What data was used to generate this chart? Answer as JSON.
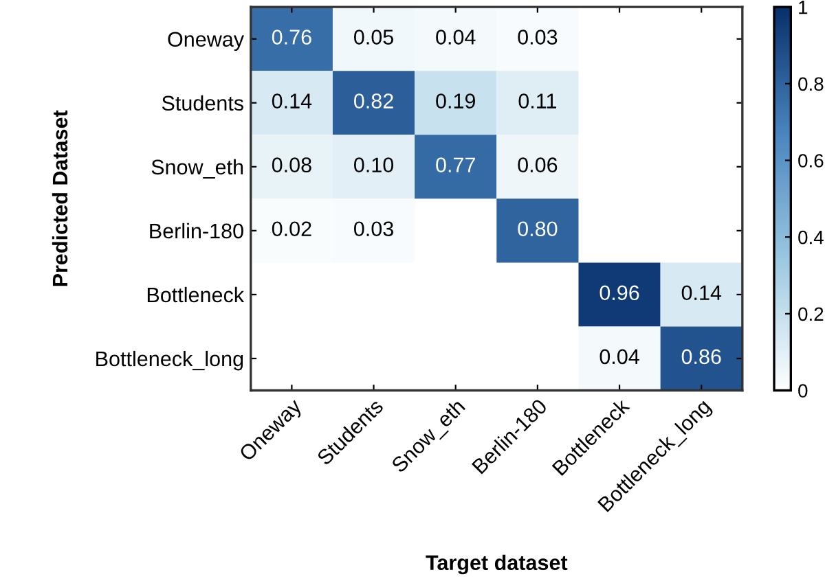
{
  "chart_data": {
    "type": "heatmap",
    "xlabel": "Target dataset",
    "ylabel": "Predicted Dataset",
    "categories": [
      "Oneway",
      "Students",
      "Snow_eth",
      "Berlin-180",
      "Bottleneck",
      "Bottleneck_long"
    ],
    "y_categories": [
      "Oneway",
      "Students",
      "Snow_eth",
      "Berlin-180",
      "Bottleneck",
      "Bottleneck_long"
    ],
    "cells": [
      [
        0.76,
        0.05,
        0.04,
        0.03,
        null,
        null
      ],
      [
        0.14,
        0.82,
        0.19,
        0.11,
        null,
        null
      ],
      [
        0.08,
        0.1,
        0.77,
        0.06,
        null,
        null
      ],
      [
        0.02,
        0.03,
        null,
        0.8,
        null,
        null
      ],
      [
        null,
        null,
        null,
        null,
        0.96,
        0.14
      ],
      [
        null,
        null,
        null,
        null,
        0.04,
        0.86
      ]
    ],
    "cell_labels": [
      [
        "0.76",
        "0.05",
        "0.04",
        "0.03",
        null,
        null
      ],
      [
        "0.14",
        "0.82",
        "0.19",
        "0.11",
        null,
        null
      ],
      [
        "0.08",
        "0.10",
        "0.77",
        "0.06",
        null,
        null
      ],
      [
        "0.02",
        "0.03",
        null,
        "0.80",
        null,
        null
      ],
      [
        null,
        null,
        null,
        null,
        "0.96",
        "0.14"
      ],
      [
        null,
        null,
        null,
        null,
        "0.04",
        "0.86"
      ]
    ],
    "clim": [
      0,
      1
    ],
    "cticks": [
      0,
      0.2,
      0.4,
      0.6,
      0.8,
      1
    ],
    "grid": false
  }
}
